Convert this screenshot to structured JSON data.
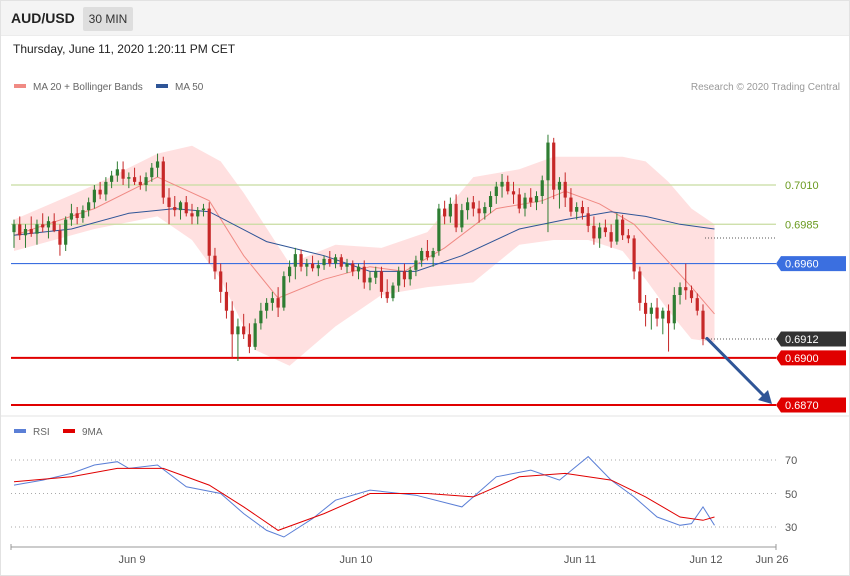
{
  "header": {
    "symbol": "AUD/USD",
    "timeframe": "30 MIN",
    "datetime": "Thursday, June 11, 2020 1:20:11 PM CET"
  },
  "main_chart": {
    "legend": [
      {
        "label": "MA 20 + Bollinger Bands",
        "color": "#f08a84"
      },
      {
        "label": "MA 50",
        "color": "#2f5597"
      }
    ],
    "credit": "Research © 2020 Trading Central",
    "levels": [
      {
        "label": "0.7010",
        "value": 0.701,
        "style": "green"
      },
      {
        "label": "0.6985",
        "value": 0.6985,
        "style": "green"
      },
      {
        "label": "0.6960",
        "value": 0.696,
        "style": "blue"
      },
      {
        "label": "0.6912",
        "value": 0.6912,
        "style": "price"
      },
      {
        "label": "0.6900",
        "value": 0.69,
        "style": "red"
      },
      {
        "label": "0.6870",
        "value": 0.687,
        "style": "red"
      }
    ],
    "colors": {
      "up": "#2e7d32",
      "down": "#c62828",
      "band": "#ffd6d6",
      "ma20": "#f08a84",
      "ma50": "#2f5597",
      "green_level": "#c8dca0",
      "green_text": "#6a9a1f",
      "blue_level": "#3b6fe0",
      "red_level": "#e00000",
      "price_tag": "#333333",
      "arrow": "#2f5597"
    }
  },
  "rsi_panel": {
    "legend": [
      {
        "label": "RSI",
        "color": "#5b7fd6"
      },
      {
        "label": "9MA",
        "color": "#e00000"
      }
    ],
    "levels": [
      "70",
      "50",
      "30"
    ]
  },
  "x_axis": {
    "labels": [
      "Jun 9",
      "Jun 10",
      "Jun 11",
      "Jun 12",
      "Jun 26"
    ]
  },
  "chart_data": {
    "type": "candlestick",
    "symbol": "AUD/USD",
    "interval": "30 MIN",
    "ylim": [
      0.687,
      0.7035
    ],
    "horizontal_levels": [
      0.701,
      0.6985,
      0.696,
      0.6912,
      0.69,
      0.687
    ],
    "last_price": 0.6912,
    "x_ticks": [
      "Jun 9",
      "Jun 10",
      "Jun 11",
      "Jun 12",
      "Jun 26"
    ],
    "candles": [
      [
        0.698,
        0.6988,
        0.697,
        0.6985
      ],
      [
        0.6985,
        0.699,
        0.6975,
        0.6978
      ],
      [
        0.6978,
        0.6985,
        0.697,
        0.6982
      ],
      [
        0.6982,
        0.699,
        0.6977,
        0.6979
      ],
      [
        0.6979,
        0.6988,
        0.6972,
        0.6985
      ],
      [
        0.6985,
        0.6992,
        0.698,
        0.6983
      ],
      [
        0.6983,
        0.699,
        0.6976,
        0.6987
      ],
      [
        0.6987,
        0.6992,
        0.698,
        0.6981
      ],
      [
        0.6981,
        0.6985,
        0.6965,
        0.6972
      ],
      [
        0.6972,
        0.699,
        0.6968,
        0.6988
      ],
      [
        0.6988,
        0.6998,
        0.6984,
        0.6992
      ],
      [
        0.6992,
        0.6996,
        0.6985,
        0.6989
      ],
      [
        0.6989,
        0.6997,
        0.6986,
        0.6994
      ],
      [
        0.6994,
        0.7002,
        0.699,
        0.6999
      ],
      [
        0.6999,
        0.701,
        0.6995,
        0.7007
      ],
      [
        0.7007,
        0.7012,
        0.7001,
        0.7004
      ],
      [
        0.7004,
        0.7015,
        0.7,
        0.7012
      ],
      [
        0.7012,
        0.7019,
        0.7008,
        0.7016
      ],
      [
        0.7016,
        0.7025,
        0.7012,
        0.702
      ],
      [
        0.702,
        0.7025,
        0.701,
        0.7014
      ],
      [
        0.7014,
        0.7018,
        0.7008,
        0.7015
      ],
      [
        0.7015,
        0.7021,
        0.701,
        0.7012
      ],
      [
        0.7012,
        0.7016,
        0.7007,
        0.701
      ],
      [
        0.701,
        0.7018,
        0.7006,
        0.7015
      ],
      [
        0.7015,
        0.7024,
        0.7012,
        0.7021
      ],
      [
        0.7021,
        0.703,
        0.7015,
        0.7025
      ],
      [
        0.7025,
        0.7028,
        0.6998,
        0.7002
      ],
      [
        0.7002,
        0.7008,
        0.6985,
        0.6996
      ],
      [
        0.6996,
        0.7003,
        0.699,
        0.6994
      ],
      [
        0.6994,
        0.7,
        0.6988,
        0.6999
      ],
      [
        0.6999,
        0.7003,
        0.699,
        0.6992
      ],
      [
        0.6992,
        0.6998,
        0.6985,
        0.699
      ],
      [
        0.699,
        0.6996,
        0.6985,
        0.6994
      ],
      [
        0.6994,
        0.6998,
        0.699,
        0.6995
      ],
      [
        0.6995,
        0.6999,
        0.696,
        0.6965
      ],
      [
        0.6965,
        0.697,
        0.695,
        0.6955
      ],
      [
        0.6955,
        0.696,
        0.6935,
        0.6942
      ],
      [
        0.6942,
        0.6948,
        0.6925,
        0.693
      ],
      [
        0.693,
        0.6936,
        0.69,
        0.6915
      ],
      [
        0.6915,
        0.6925,
        0.6898,
        0.692
      ],
      [
        0.692,
        0.6928,
        0.6912,
        0.6915
      ],
      [
        0.6915,
        0.6922,
        0.6903,
        0.6907
      ],
      [
        0.6907,
        0.6925,
        0.6905,
        0.6922
      ],
      [
        0.6922,
        0.6935,
        0.6918,
        0.693
      ],
      [
        0.693,
        0.6938,
        0.6925,
        0.6935
      ],
      [
        0.6935,
        0.6942,
        0.693,
        0.6938
      ],
      [
        0.6938,
        0.6945,
        0.6926,
        0.6932
      ],
      [
        0.6932,
        0.6955,
        0.693,
        0.6952
      ],
      [
        0.6952,
        0.6962,
        0.6948,
        0.6958
      ],
      [
        0.6958,
        0.697,
        0.695,
        0.6966
      ],
      [
        0.6966,
        0.6969,
        0.6955,
        0.6958
      ],
      [
        0.6958,
        0.6963,
        0.6952,
        0.696
      ],
      [
        0.696,
        0.6965,
        0.6955,
        0.6957
      ],
      [
        0.6957,
        0.6962,
        0.6952,
        0.6959
      ],
      [
        0.6959,
        0.6965,
        0.6956,
        0.6963
      ],
      [
        0.6963,
        0.6968,
        0.6958,
        0.696
      ],
      [
        0.696,
        0.6966,
        0.6957,
        0.6964
      ],
      [
        0.6964,
        0.6966,
        0.6956,
        0.6958
      ],
      [
        0.6958,
        0.6963,
        0.6954,
        0.696
      ],
      [
        0.696,
        0.6962,
        0.6952,
        0.6955
      ],
      [
        0.6955,
        0.696,
        0.695,
        0.6958
      ],
      [
        0.6958,
        0.6962,
        0.6944,
        0.6948
      ],
      [
        0.6948,
        0.6955,
        0.6943,
        0.6951
      ],
      [
        0.6951,
        0.6958,
        0.6947,
        0.6955
      ],
      [
        0.6955,
        0.6958,
        0.6938,
        0.6942
      ],
      [
        0.6942,
        0.695,
        0.6935,
        0.6938
      ],
      [
        0.6938,
        0.6948,
        0.6936,
        0.6946
      ],
      [
        0.6946,
        0.6958,
        0.6942,
        0.6955
      ],
      [
        0.6955,
        0.696,
        0.6945,
        0.695
      ],
      [
        0.695,
        0.6958,
        0.6946,
        0.6956
      ],
      [
        0.6956,
        0.6965,
        0.6952,
        0.6962
      ],
      [
        0.6962,
        0.697,
        0.6958,
        0.6968
      ],
      [
        0.6968,
        0.6975,
        0.6962,
        0.6964
      ],
      [
        0.6964,
        0.697,
        0.6958,
        0.6968
      ],
      [
        0.6968,
        0.6998,
        0.6965,
        0.6995
      ],
      [
        0.6995,
        0.7,
        0.6985,
        0.699
      ],
      [
        0.699,
        0.7002,
        0.6986,
        0.6998
      ],
      [
        0.6998,
        0.7004,
        0.698,
        0.6983
      ],
      [
        0.6983,
        0.6998,
        0.698,
        0.6994
      ],
      [
        0.6994,
        0.7002,
        0.6988,
        0.6999
      ],
      [
        0.6999,
        0.7003,
        0.699,
        0.6995
      ],
      [
        0.6995,
        0.7,
        0.6986,
        0.6992
      ],
      [
        0.6992,
        0.6999,
        0.6988,
        0.6996
      ],
      [
        0.6996,
        0.7006,
        0.6992,
        0.7003
      ],
      [
        0.7003,
        0.7012,
        0.6998,
        0.7009
      ],
      [
        0.7009,
        0.7017,
        0.7002,
        0.7012
      ],
      [
        0.7012,
        0.7016,
        0.7004,
        0.7006
      ],
      [
        0.7006,
        0.7012,
        0.6998,
        0.7004
      ],
      [
        0.7004,
        0.7008,
        0.6992,
        0.6995
      ],
      [
        0.6995,
        0.7005,
        0.699,
        0.7002
      ],
      [
        0.7002,
        0.7008,
        0.6996,
        0.6999
      ],
      [
        0.6999,
        0.7006,
        0.6994,
        0.7003
      ],
      [
        0.7003,
        0.7016,
        0.6998,
        0.7013
      ],
      [
        0.7013,
        0.7042,
        0.698,
        0.7037
      ],
      [
        0.7037,
        0.704,
        0.7001,
        0.7007
      ],
      [
        0.7007,
        0.7015,
        0.6995,
        0.7012
      ],
      [
        0.7012,
        0.7018,
        0.6996,
        0.7002
      ],
      [
        0.7002,
        0.7008,
        0.699,
        0.6993
      ],
      [
        0.6993,
        0.6999,
        0.6988,
        0.6996
      ],
      [
        0.6996,
        0.7,
        0.6988,
        0.6992
      ],
      [
        0.6992,
        0.6996,
        0.698,
        0.6984
      ],
      [
        0.6984,
        0.699,
        0.6972,
        0.6976
      ],
      [
        0.6976,
        0.6986,
        0.697,
        0.6983
      ],
      [
        0.6983,
        0.6988,
        0.6977,
        0.698
      ],
      [
        0.698,
        0.6985,
        0.697,
        0.6974
      ],
      [
        0.6974,
        0.6992,
        0.6972,
        0.6988
      ],
      [
        0.6988,
        0.6991,
        0.6975,
        0.6978
      ],
      [
        0.6978,
        0.6982,
        0.6973,
        0.6976
      ],
      [
        0.6976,
        0.6978,
        0.695,
        0.6955
      ],
      [
        0.6955,
        0.6958,
        0.693,
        0.6935
      ],
      [
        0.6935,
        0.694,
        0.692,
        0.6928
      ],
      [
        0.6928,
        0.6935,
        0.6918,
        0.6932
      ],
      [
        0.6932,
        0.6938,
        0.692,
        0.6925
      ],
      [
        0.6925,
        0.6932,
        0.6915,
        0.693
      ],
      [
        0.693,
        0.6934,
        0.6904,
        0.6922
      ],
      [
        0.6922,
        0.6945,
        0.6918,
        0.694
      ],
      [
        0.694,
        0.6948,
        0.6934,
        0.6945
      ],
      [
        0.6945,
        0.696,
        0.6937,
        0.6943
      ],
      [
        0.6943,
        0.6946,
        0.6935,
        0.6938
      ],
      [
        0.6938,
        0.6941,
        0.6927,
        0.693
      ],
      [
        0.693,
        0.6934,
        0.6908,
        0.6912
      ]
    ],
    "ma20": [
      [
        0,
        0.6978
      ],
      [
        14,
        0.6995
      ],
      [
        25,
        0.7015
      ],
      [
        34,
        0.7
      ],
      [
        40,
        0.6965
      ],
      [
        46,
        0.6938
      ],
      [
        54,
        0.695
      ],
      [
        62,
        0.6958
      ],
      [
        68,
        0.6955
      ],
      [
        75,
        0.697
      ],
      [
        84,
        0.6995
      ],
      [
        92,
        0.7
      ],
      [
        96,
        0.7006
      ],
      [
        102,
        0.6998
      ],
      [
        108,
        0.6985
      ],
      [
        113,
        0.6965
      ],
      [
        118,
        0.6945
      ],
      [
        122,
        0.6928
      ]
    ],
    "ma50": [
      [
        0,
        0.6978
      ],
      [
        10,
        0.6982
      ],
      [
        20,
        0.6992
      ],
      [
        28,
        0.6995
      ],
      [
        34,
        0.6993
      ],
      [
        44,
        0.6974
      ],
      [
        54,
        0.6965
      ],
      [
        62,
        0.6955
      ],
      [
        70,
        0.6955
      ],
      [
        78,
        0.6965
      ],
      [
        88,
        0.6982
      ],
      [
        96,
        0.6988
      ],
      [
        104,
        0.6993
      ],
      [
        110,
        0.699
      ],
      [
        116,
        0.6985
      ],
      [
        122,
        0.6982
      ]
    ],
    "bollinger_upper": [
      [
        0,
        0.6988
      ],
      [
        14,
        0.701
      ],
      [
        25,
        0.703
      ],
      [
        31,
        0.7035
      ],
      [
        36,
        0.7025
      ],
      [
        40,
        0.7005
      ],
      [
        48,
        0.696
      ],
      [
        56,
        0.6972
      ],
      [
        64,
        0.697
      ],
      [
        72,
        0.698
      ],
      [
        80,
        0.7015
      ],
      [
        88,
        0.702
      ],
      [
        94,
        0.7028
      ],
      [
        100,
        0.7028
      ],
      [
        106,
        0.7028
      ],
      [
        110,
        0.7025
      ],
      [
        114,
        0.7012
      ],
      [
        118,
        0.6995
      ],
      [
        122,
        0.6985
      ]
    ],
    "bollinger_lower": [
      [
        0,
        0.6968
      ],
      [
        14,
        0.6982
      ],
      [
        25,
        0.699
      ],
      [
        31,
        0.6975
      ],
      [
        36,
        0.695
      ],
      [
        42,
        0.6905
      ],
      [
        48,
        0.6895
      ],
      [
        56,
        0.692
      ],
      [
        64,
        0.694
      ],
      [
        72,
        0.6945
      ],
      [
        80,
        0.6948
      ],
      [
        88,
        0.6972
      ],
      [
        94,
        0.6975
      ],
      [
        100,
        0.6975
      ],
      [
        106,
        0.6968
      ],
      [
        110,
        0.695
      ],
      [
        114,
        0.693
      ],
      [
        118,
        0.6912
      ],
      [
        122,
        0.691
      ]
    ],
    "projection_arrow": {
      "from": 0.6913,
      "to": 0.687
    },
    "rsi": {
      "ylim": [
        20,
        78
      ],
      "levels": [
        70,
        50,
        30
      ],
      "rsi": [
        [
          0,
          55
        ],
        [
          5,
          58
        ],
        [
          10,
          62
        ],
        [
          14,
          67
        ],
        [
          18,
          69
        ],
        [
          20,
          65
        ],
        [
          25,
          67
        ],
        [
          30,
          54
        ],
        [
          36,
          50
        ],
        [
          40,
          38
        ],
        [
          44,
          28
        ],
        [
          47,
          24
        ],
        [
          52,
          35
        ],
        [
          56,
          46
        ],
        [
          62,
          52
        ],
        [
          70,
          49
        ],
        [
          78,
          42
        ],
        [
          84,
          60
        ],
        [
          90,
          64
        ],
        [
          95,
          58
        ],
        [
          100,
          72
        ],
        [
          104,
          58
        ],
        [
          108,
          48
        ],
        [
          112,
          36
        ],
        [
          116,
          31
        ],
        [
          118,
          32
        ],
        [
          120,
          42
        ],
        [
          122,
          31
        ]
      ],
      "ma9": [
        [
          0,
          57
        ],
        [
          10,
          60
        ],
        [
          18,
          65
        ],
        [
          26,
          65
        ],
        [
          34,
          55
        ],
        [
          40,
          42
        ],
        [
          46,
          28
        ],
        [
          54,
          38
        ],
        [
          62,
          50
        ],
        [
          72,
          50
        ],
        [
          80,
          48
        ],
        [
          88,
          60
        ],
        [
          96,
          62
        ],
        [
          104,
          58
        ],
        [
          110,
          48
        ],
        [
          116,
          36
        ],
        [
          120,
          34
        ],
        [
          122,
          36
        ]
      ]
    }
  }
}
